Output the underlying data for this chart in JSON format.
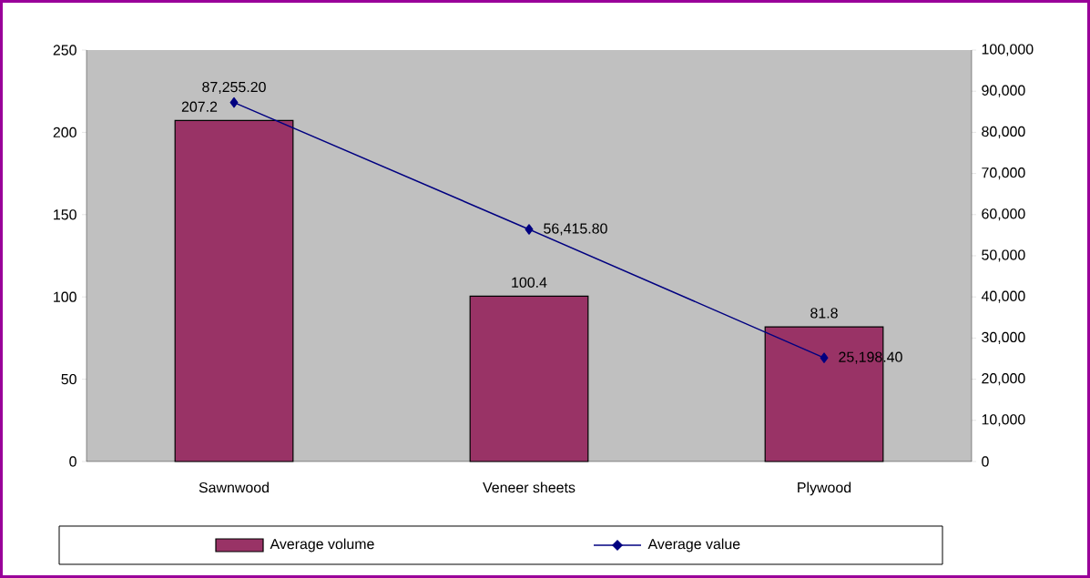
{
  "chart_data": {
    "type": "bar",
    "categories": [
      "Sawnwood",
      "Veneer sheets",
      "Plywood"
    ],
    "series": [
      {
        "name": "Average volume",
        "color": "#993366",
        "values": [
          207.2,
          100.4,
          81.8
        ],
        "value_labels": [
          "207.2",
          "100.4",
          "81.8"
        ]
      },
      {
        "name": "Average value",
        "type": "line",
        "axis": "y2",
        "color": "#000080",
        "values": [
          87255.2,
          56415.8,
          25198.4
        ],
        "value_labels": [
          "87,255.20",
          "56,415.80",
          "25,198.40"
        ]
      }
    ],
    "ylim": [
      0,
      250
    ],
    "yticks": [
      0,
      50,
      100,
      150,
      200,
      250
    ],
    "y2lim": [
      0,
      100000
    ],
    "y2ticks": [
      {
        "value": 0,
        "label": "0"
      },
      {
        "value": 10000,
        "label": "10,000"
      },
      {
        "value": 20000,
        "label": "20,000"
      },
      {
        "value": 30000,
        "label": "30,000"
      },
      {
        "value": 40000,
        "label": "40,000"
      },
      {
        "value": 50000,
        "label": "50,000"
      },
      {
        "value": 60000,
        "label": "60,000"
      },
      {
        "value": 70000,
        "label": "70,000"
      },
      {
        "value": 80000,
        "label": "80,000"
      },
      {
        "value": 90000,
        "label": "90,000"
      },
      {
        "value": 100000,
        "label": "100,000"
      }
    ],
    "marker": "diamond",
    "grid": false,
    "legend": "bottom"
  }
}
